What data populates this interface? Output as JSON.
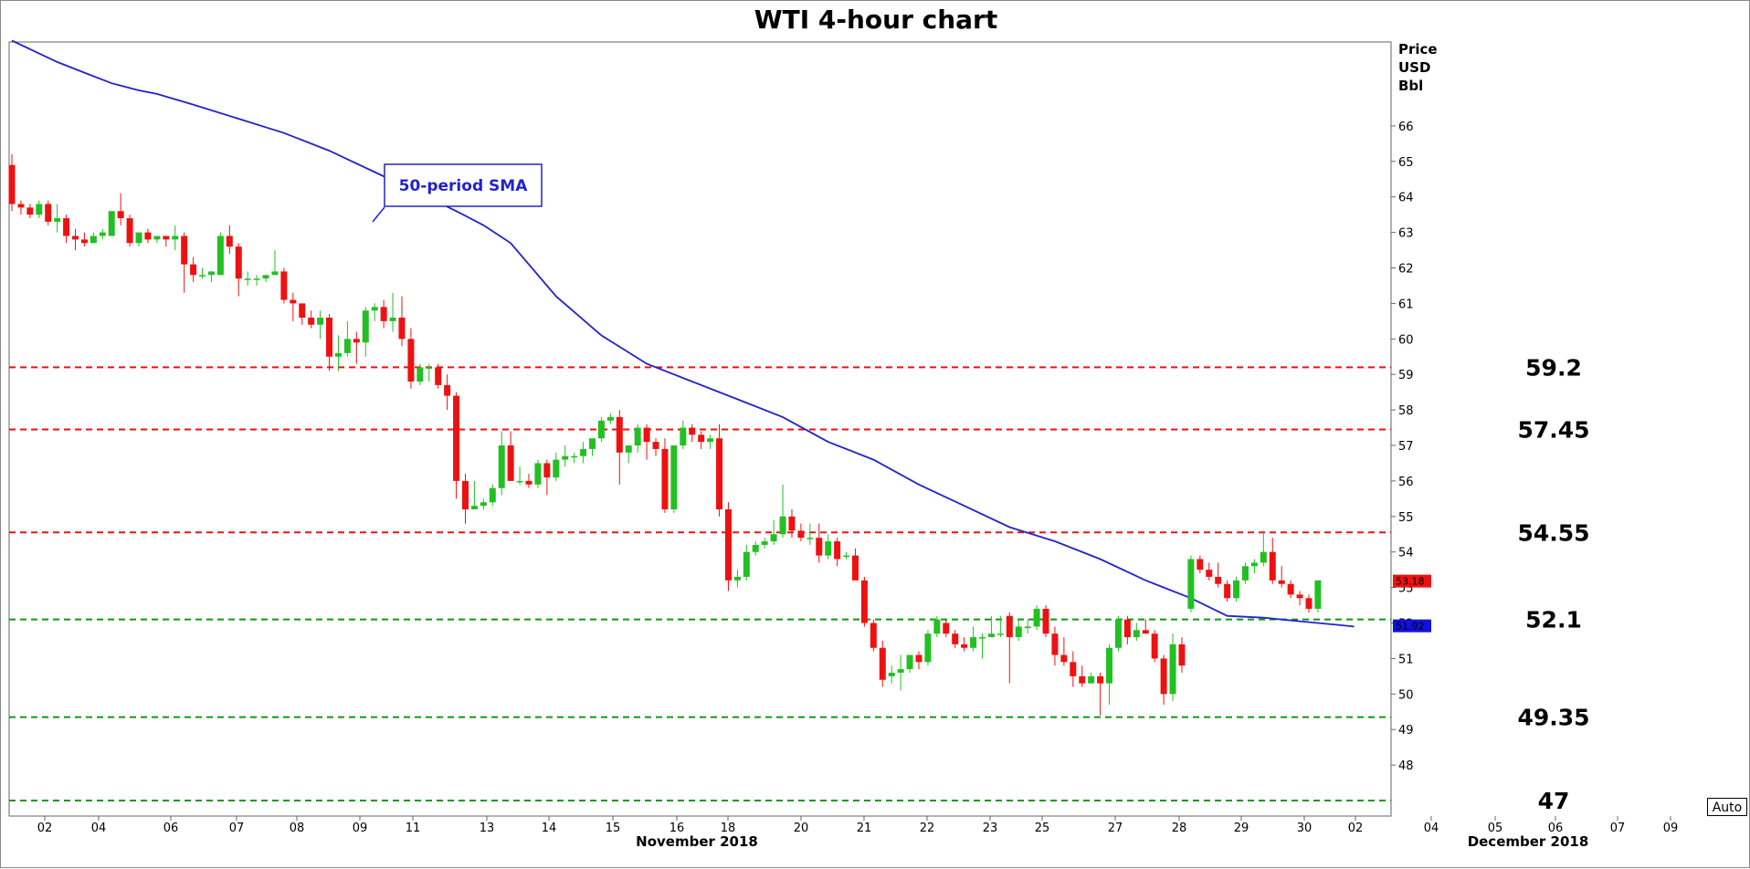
{
  "chart_data": {
    "type": "candlestick",
    "title": "WTI 4-hour chart",
    "ylabel_lines": [
      "Price",
      "USD",
      "Bbl"
    ],
    "ylim": [
      46.8,
      68.5
    ],
    "y_ticks": [
      48,
      49,
      50,
      51,
      52,
      53,
      54,
      55,
      56,
      57,
      58,
      59,
      60,
      61,
      62,
      63,
      64,
      65,
      66
    ],
    "x_ticks": [
      "02",
      "04",
      "06",
      "07",
      "08",
      "09",
      "11",
      "13",
      "14",
      "15",
      "16",
      "18",
      "20",
      "21",
      "22",
      "23",
      "25",
      "27",
      "28",
      "29",
      "30",
      "02",
      "04",
      "05",
      "06",
      "07",
      "09"
    ],
    "month_labels": [
      "November 2018",
      "December 2018"
    ],
    "colors": {
      "up": "#22c022",
      "down": "#ee1111",
      "sma": "#2222cc",
      "resistance": "#ee1111",
      "support": "#119911"
    },
    "candles": [
      [
        64.9,
        65.2,
        63.6,
        63.8
      ],
      [
        63.8,
        63.9,
        63.5,
        63.7
      ],
      [
        63.7,
        63.8,
        63.4,
        63.5
      ],
      [
        63.5,
        63.9,
        63.4,
        63.8
      ],
      [
        63.8,
        63.9,
        63.2,
        63.3
      ],
      [
        63.3,
        63.8,
        63.0,
        63.4
      ],
      [
        63.4,
        63.5,
        62.7,
        62.9
      ],
      [
        62.9,
        63.1,
        62.5,
        62.8
      ],
      [
        62.8,
        63.0,
        62.6,
        62.7
      ],
      [
        62.7,
        63.0,
        62.7,
        62.9
      ],
      [
        62.9,
        63.1,
        62.8,
        63.0
      ],
      [
        62.9,
        63.6,
        62.9,
        63.6
      ],
      [
        63.6,
        64.1,
        63.2,
        63.4
      ],
      [
        63.4,
        63.5,
        62.6,
        62.7
      ],
      [
        62.7,
        63.0,
        62.6,
        63.0
      ],
      [
        63.0,
        63.1,
        62.7,
        62.8
      ],
      [
        62.8,
        62.9,
        62.7,
        62.9
      ],
      [
        62.9,
        62.9,
        62.6,
        62.8
      ],
      [
        62.8,
        63.2,
        62.5,
        62.9
      ],
      [
        62.9,
        63.0,
        61.3,
        62.1
      ],
      [
        62.1,
        62.3,
        61.6,
        61.8
      ],
      [
        61.8,
        62.0,
        61.7,
        61.8
      ],
      [
        61.8,
        61.9,
        61.6,
        61.9
      ],
      [
        61.8,
        63.0,
        61.8,
        62.9
      ],
      [
        62.9,
        63.2,
        62.4,
        62.6
      ],
      [
        62.6,
        62.7,
        61.2,
        61.7
      ],
      [
        61.7,
        61.9,
        61.5,
        61.7
      ],
      [
        61.7,
        61.8,
        61.5,
        61.7
      ],
      [
        61.7,
        61.8,
        61.6,
        61.8
      ],
      [
        61.8,
        62.5,
        61.8,
        61.9
      ],
      [
        61.9,
        62.0,
        61.0,
        61.1
      ],
      [
        61.1,
        61.3,
        60.5,
        61.0
      ],
      [
        61.0,
        61.0,
        60.4,
        60.6
      ],
      [
        60.6,
        60.8,
        60.3,
        60.4
      ],
      [
        60.4,
        60.8,
        60.0,
        60.6
      ],
      [
        60.6,
        60.7,
        59.1,
        59.5
      ],
      [
        59.5,
        60.1,
        59.1,
        59.6
      ],
      [
        59.6,
        60.5,
        59.5,
        60.0
      ],
      [
        60.0,
        60.2,
        59.3,
        59.9
      ],
      [
        59.9,
        60.9,
        59.5,
        60.8
      ],
      [
        60.8,
        61.0,
        60.5,
        60.9
      ],
      [
        60.9,
        61.1,
        60.3,
        60.5
      ],
      [
        60.5,
        61.3,
        60.2,
        60.6
      ],
      [
        60.6,
        61.2,
        59.8,
        60.0
      ],
      [
        60.0,
        60.3,
        58.6,
        58.8
      ],
      [
        58.8,
        59.3,
        58.7,
        59.2
      ],
      [
        59.2,
        59.3,
        58.8,
        59.2
      ],
      [
        59.2,
        59.3,
        58.6,
        58.7
      ],
      [
        58.7,
        59.0,
        58.0,
        58.4
      ],
      [
        58.4,
        58.5,
        55.5,
        56.0
      ],
      [
        56.0,
        56.2,
        54.8,
        55.2
      ],
      [
        55.2,
        56.0,
        55.2,
        55.3
      ],
      [
        55.3,
        55.5,
        55.2,
        55.4
      ],
      [
        55.4,
        55.9,
        55.3,
        55.8
      ],
      [
        55.8,
        57.4,
        55.6,
        57.0
      ],
      [
        57.0,
        57.4,
        56.1,
        56.0
      ],
      [
        56.0,
        56.4,
        55.9,
        56.0
      ],
      [
        56.0,
        56.2,
        55.8,
        55.9
      ],
      [
        55.9,
        56.6,
        55.8,
        56.5
      ],
      [
        56.5,
        56.6,
        55.6,
        56.1
      ],
      [
        56.1,
        56.8,
        56.0,
        56.6
      ],
      [
        56.6,
        57.0,
        56.4,
        56.7
      ],
      [
        56.7,
        56.8,
        56.5,
        56.7
      ],
      [
        56.7,
        57.1,
        56.5,
        56.9
      ],
      [
        56.9,
        57.2,
        56.7,
        57.2
      ],
      [
        57.2,
        57.8,
        57.1,
        57.7
      ],
      [
        57.7,
        57.9,
        57.6,
        57.8
      ],
      [
        57.8,
        58.0,
        55.9,
        56.8
      ],
      [
        56.8,
        57.0,
        56.5,
        57.0
      ],
      [
        57.0,
        57.6,
        56.8,
        57.5
      ],
      [
        57.5,
        57.6,
        56.6,
        57.1
      ],
      [
        57.1,
        57.2,
        56.7,
        56.9
      ],
      [
        56.9,
        57.2,
        55.1,
        55.2
      ],
      [
        55.2,
        57.0,
        55.1,
        57.0
      ],
      [
        57.0,
        57.7,
        56.9,
        57.5
      ],
      [
        57.5,
        57.6,
        57.1,
        57.3
      ],
      [
        57.3,
        57.4,
        56.9,
        57.1
      ],
      [
        57.1,
        57.3,
        56.9,
        57.2
      ],
      [
        57.2,
        57.6,
        55.0,
        55.2
      ],
      [
        55.2,
        55.4,
        52.9,
        53.2
      ],
      [
        53.2,
        53.5,
        53.0,
        53.3
      ],
      [
        53.3,
        54.2,
        53.2,
        54.0
      ],
      [
        54.0,
        54.3,
        53.9,
        54.2
      ],
      [
        54.2,
        54.4,
        54.1,
        54.3
      ],
      [
        54.3,
        54.9,
        54.2,
        54.5
      ],
      [
        54.5,
        55.9,
        54.4,
        55.0
      ],
      [
        55.0,
        55.2,
        54.4,
        54.6
      ],
      [
        54.6,
        54.8,
        54.3,
        54.4
      ],
      [
        54.4,
        54.8,
        54.2,
        54.4
      ],
      [
        54.4,
        54.8,
        53.7,
        53.9
      ],
      [
        53.9,
        54.5,
        53.8,
        54.3
      ],
      [
        54.3,
        54.4,
        53.6,
        53.8
      ],
      [
        53.9,
        54.0,
        53.8,
        53.9
      ],
      [
        53.9,
        54.1,
        53.2,
        53.2
      ],
      [
        53.2,
        53.3,
        51.9,
        52.0
      ],
      [
        52.0,
        52.1,
        51.2,
        51.3
      ],
      [
        51.3,
        51.5,
        50.2,
        50.4
      ],
      [
        50.5,
        50.8,
        50.3,
        50.6
      ],
      [
        50.6,
        51.1,
        50.1,
        50.7
      ],
      [
        50.7,
        51.1,
        50.6,
        51.1
      ],
      [
        51.1,
        51.2,
        50.7,
        50.9
      ],
      [
        50.9,
        51.8,
        50.8,
        51.7
      ],
      [
        51.7,
        52.2,
        51.6,
        52.1
      ],
      [
        52.0,
        52.1,
        51.6,
        51.7
      ],
      [
        51.7,
        51.8,
        51.3,
        51.4
      ],
      [
        51.4,
        51.6,
        51.2,
        51.3
      ],
      [
        51.3,
        51.9,
        51.2,
        51.6
      ],
      [
        51.6,
        51.7,
        51.0,
        51.6
      ],
      [
        51.6,
        52.2,
        51.6,
        51.7
      ],
      [
        51.7,
        52.2,
        51.6,
        51.7
      ],
      [
        52.2,
        52.3,
        50.3,
        51.6
      ],
      [
        51.6,
        52.1,
        51.5,
        51.9
      ],
      [
        51.9,
        52.1,
        51.7,
        51.9
      ],
      [
        51.9,
        52.5,
        51.8,
        52.4
      ],
      [
        52.4,
        52.5,
        51.6,
        51.7
      ],
      [
        51.7,
        51.9,
        50.8,
        51.1
      ],
      [
        51.1,
        51.6,
        50.8,
        50.9
      ],
      [
        50.9,
        51.2,
        50.2,
        50.5
      ],
      [
        50.5,
        50.8,
        50.2,
        50.3
      ],
      [
        50.3,
        50.6,
        50.3,
        50.5
      ],
      [
        50.5,
        50.6,
        49.4,
        50.3
      ],
      [
        50.3,
        51.4,
        49.7,
        51.3
      ],
      [
        51.3,
        52.2,
        51.2,
        52.1
      ],
      [
        52.1,
        52.2,
        51.4,
        51.6
      ],
      [
        51.6,
        52.0,
        51.5,
        51.8
      ],
      [
        51.8,
        52.1,
        51.7,
        51.7
      ],
      [
        51.7,
        51.8,
        50.9,
        51.0
      ],
      [
        51.0,
        51.1,
        49.7,
        50.0
      ],
      [
        50.0,
        51.7,
        49.8,
        51.4
      ],
      [
        51.4,
        51.6,
        50.6,
        50.8
      ],
      [
        52.4,
        53.9,
        52.3,
        53.8
      ],
      [
        53.8,
        53.9,
        53.4,
        53.5
      ],
      [
        53.5,
        53.7,
        53.2,
        53.3
      ],
      [
        53.3,
        53.7,
        53.0,
        53.1
      ],
      [
        53.1,
        53.2,
        52.6,
        52.7
      ],
      [
        52.7,
        53.3,
        52.6,
        53.2
      ],
      [
        53.2,
        53.7,
        53.1,
        53.6
      ],
      [
        53.6,
        53.8,
        53.4,
        53.7
      ],
      [
        53.7,
        54.6,
        53.6,
        54.0
      ],
      [
        54.0,
        54.4,
        53.1,
        53.2
      ],
      [
        53.2,
        53.6,
        53.0,
        53.1
      ],
      [
        53.1,
        53.2,
        52.7,
        52.8
      ],
      [
        52.8,
        52.9,
        52.5,
        52.7
      ],
      [
        52.7,
        52.8,
        52.3,
        52.4
      ],
      [
        52.4,
        53.2,
        52.3,
        53.2
      ]
    ],
    "sma_label": "50-period SMA",
    "sma": [
      [
        0,
        68.4
      ],
      [
        2.5,
        68.1
      ],
      [
        5,
        67.8
      ],
      [
        8,
        67.5
      ],
      [
        11,
        67.2
      ],
      [
        14,
        67.0
      ],
      [
        16,
        66.9
      ],
      [
        20,
        66.6
      ],
      [
        25,
        66.2
      ],
      [
        30,
        65.8
      ],
      [
        35,
        65.3
      ],
      [
        40,
        64.7
      ],
      [
        45,
        64.1
      ],
      [
        49,
        63.6
      ],
      [
        52,
        63.2
      ],
      [
        55,
        62.7
      ],
      [
        60,
        61.2
      ],
      [
        65,
        60.1
      ],
      [
        70,
        59.3
      ],
      [
        75,
        58.8
      ],
      [
        80,
        58.3
      ],
      [
        85,
        57.8
      ],
      [
        90,
        57.1
      ],
      [
        95,
        56.6
      ],
      [
        100,
        55.9
      ],
      [
        105,
        55.3
      ],
      [
        110,
        54.7
      ],
      [
        115,
        54.3
      ],
      [
        120,
        53.8
      ],
      [
        125,
        53.2
      ],
      [
        130,
        52.7
      ],
      [
        134,
        52.2
      ],
      [
        138,
        52.15
      ],
      [
        142,
        52.05
      ],
      [
        146,
        51.95
      ],
      [
        148,
        51.9
      ]
    ],
    "levels": [
      {
        "value": 59.2,
        "label": "59.2",
        "kind": "resistance"
      },
      {
        "value": 57.45,
        "label": "57.45",
        "kind": "resistance"
      },
      {
        "value": 54.55,
        "label": "54.55",
        "kind": "resistance"
      },
      {
        "value": 52.1,
        "label": "52.1",
        "kind": "support"
      },
      {
        "value": 49.35,
        "label": "49.35",
        "kind": "support"
      },
      {
        "value": 47,
        "label": "47",
        "kind": "support"
      }
    ],
    "markers": [
      {
        "label": "53.18",
        "value": 53.18,
        "color": "#ee1111"
      },
      {
        "label": "51.92",
        "value": 51.92,
        "color": "#1111dd"
      }
    ]
  },
  "controls": {
    "auto_label": "Auto"
  }
}
